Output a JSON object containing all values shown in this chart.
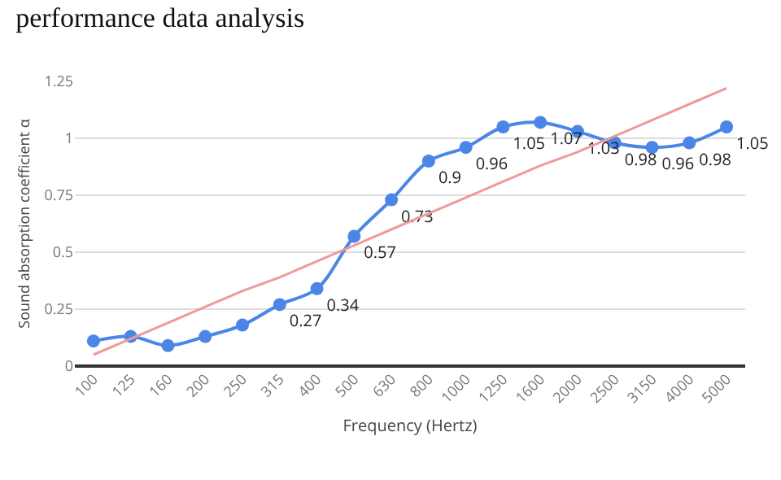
{
  "chart_data": {
    "type": "line",
    "title": "performance data analysis",
    "xlabel": "Frequency (Hertz)",
    "ylabel": "Sound absorption coefficient α",
    "categories": [
      "100",
      "125",
      "160",
      "200",
      "250",
      "315",
      "400",
      "500",
      "630",
      "800",
      "1000",
      "1250",
      "1600",
      "2000",
      "2500",
      "3150",
      "4000",
      "5000"
    ],
    "series": [
      {
        "color": "#4a86e8",
        "values": [
          0.11,
          0.13,
          0.09,
          0.13,
          0.18,
          0.27,
          0.34,
          0.57,
          0.73,
          0.9,
          0.96,
          1.05,
          1.07,
          1.03,
          0.98,
          0.96,
          0.98,
          1.05
        ],
        "value_labels": [
          null,
          null,
          null,
          null,
          null,
          "0.27",
          "0.34",
          "0.57",
          "0.73",
          "0.9",
          "0.96",
          "1.05",
          "1.07",
          "1.03",
          "0.98",
          "0.96",
          "0.98",
          "1.05"
        ],
        "marker": "circle"
      },
      {
        "type": "line",
        "color": "#ef9a9a",
        "values": [
          0.05,
          0.12,
          0.19,
          0.26,
          0.33,
          0.39,
          0.46,
          0.53,
          0.6,
          0.67,
          0.74,
          0.81,
          0.88,
          0.94,
          1.01,
          1.08,
          1.15,
          1.22
        ],
        "marker": "none"
      }
    ],
    "ylim": [
      0,
      1.25
    ],
    "yticks": [
      0,
      0.25,
      0.5,
      0.75,
      1,
      1.25
    ],
    "grid": "y",
    "legend": false
  }
}
